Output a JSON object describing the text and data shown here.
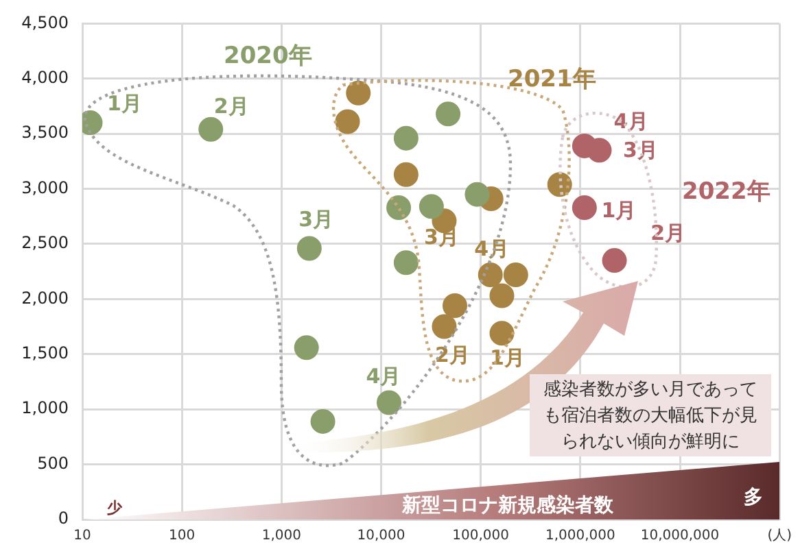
{
  "chart_data": {
    "type": "scatter",
    "xlabel": "新型コロナ新規感染者数",
    "log": "x",
    "grid": true,
    "legend": false,
    "marker": "circle",
    "xlim": [
      10,
      100000000
    ],
    "xticks": [
      10,
      100,
      {
        "value": 1000,
        "label": "1,000"
      },
      {
        "value": 10000,
        "label": "10,000"
      },
      {
        "value": 100000,
        "label": "100,000"
      },
      {
        "value": 1000000,
        "label": "1,000,000"
      },
      {
        "value": 10000000,
        "label": "10,000,000"
      },
      {
        "value": 100000000,
        "label": "(人)"
      }
    ],
    "ylim": [
      0,
      4500
    ],
    "yticks": [
      0,
      500,
      {
        "value": 1000,
        "label": "1,000"
      },
      {
        "value": 1500,
        "label": "1,500"
      },
      {
        "value": 2000,
        "label": "2,000"
      },
      {
        "value": 2500,
        "label": "2,500"
      },
      {
        "value": 3000,
        "label": "3,000"
      },
      {
        "value": 3500,
        "label": "3,500"
      },
      {
        "value": 4000,
        "label": "4,000"
      },
      {
        "value": 4500,
        "label": "4,500"
      }
    ],
    "series": [
      {
        "color": "#8a9e6b",
        "x": [
          12,
          195,
          1900,
          12000,
          1780,
          2600,
          17800,
          47000,
          15000,
          32000,
          17800,
          92000
        ],
        "values": [
          3600,
          3540,
          2460,
          1060,
          1560,
          890,
          3460,
          3680,
          2830,
          2840,
          2330,
          2950
        ]
      },
      {
        "color": "#a88444",
        "x": [
          5900,
          4600,
          17800,
          43000,
          127000,
          55000,
          43000,
          125000,
          225000,
          163000,
          163000,
          620000
        ],
        "values": [
          3870,
          3610,
          3130,
          2710,
          2910,
          1940,
          1750,
          2220,
          2220,
          2030,
          1690,
          3040
        ]
      },
      {
        "color": "#b06468",
        "x": [
          1100000,
          1550000,
          1100000,
          2200000
        ],
        "values": [
          3390,
          3350,
          2830,
          2350
        ]
      }
    ],
    "annotations": [
      "感染者数が多い月であっても宿泊者数の大幅低下が見られない傾向が鮮明に",
      "少",
      "多",
      "2020年",
      "2021年",
      "2022年",
      {
        "text": "1月",
        "x": 12,
        "y": 3600
      },
      {
        "text": "2月",
        "x": 195,
        "y": 3540
      },
      {
        "text": "3月",
        "x": 1900,
        "y": 2460
      },
      {
        "text": "4月",
        "x": 12000,
        "y": 1060
      },
      {
        "text": "3月",
        "x": 43000,
        "y": 2710
      },
      {
        "text": "4月",
        "x": 125000,
        "y": 2220
      },
      {
        "text": "2月",
        "x": 43000,
        "y": 1750
      },
      {
        "text": "1月",
        "x": 163000,
        "y": 1690
      },
      {
        "text": "4月",
        "x": 1100000,
        "y": 3390
      },
      {
        "text": "3月",
        "x": 1550000,
        "y": 3350
      },
      {
        "text": "1月",
        "x": 1100000,
        "y": 2830
      },
      {
        "text": "2月",
        "x": 2200000,
        "y": 2350
      }
    ]
  }
}
